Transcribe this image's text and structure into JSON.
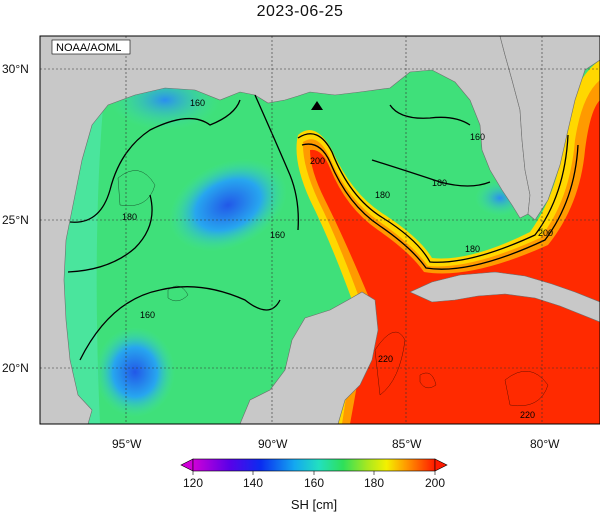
{
  "title": "2023-06-25",
  "source_label": "NOAA/AOML",
  "lat_labels": [
    "30°N",
    "25°N",
    "20°N"
  ],
  "lon_labels": [
    "95°W",
    "90°W",
    "85°W",
    "80°W"
  ],
  "contour_labels": [
    "160",
    "160",
    "160",
    "160",
    "180",
    "180",
    "180",
    "180",
    "200",
    "200",
    "220",
    "220"
  ],
  "colorbar": {
    "ticks": [
      "120",
      "140",
      "160",
      "180",
      "200"
    ],
    "title": "SH [cm]",
    "min": 120,
    "max": 200
  },
  "marker": "triangle-icon",
  "colors": {
    "land": "#c8c8c8",
    "ocean_low": "#1a4de0",
    "ocean_mid": "#2ee07a",
    "ocean_high": "#ff1a00"
  }
}
